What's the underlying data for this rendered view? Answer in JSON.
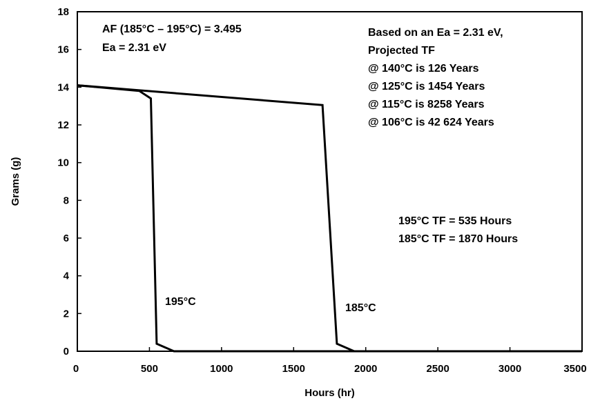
{
  "chart_data": {
    "type": "line",
    "xlabel": "Hours (hr)",
    "ylabel": "Grams (g)",
    "xlim": [
      0,
      3500
    ],
    "ylim": [
      0,
      18
    ],
    "xticks": [
      0,
      500,
      1000,
      1500,
      2000,
      2500,
      3000,
      3500
    ],
    "yticks": [
      0,
      2,
      4,
      6,
      8,
      10,
      12,
      14,
      16,
      18
    ],
    "grid": false,
    "series": [
      {
        "name": "195°C",
        "points": [
          [
            0,
            14.1
          ],
          [
            430,
            13.8
          ],
          [
            510,
            13.4
          ],
          [
            550,
            0.4
          ],
          [
            670,
            0
          ],
          [
            3500,
            0
          ]
        ]
      },
      {
        "name": "185°C",
        "points": [
          [
            0,
            14.1
          ],
          [
            1700,
            13.05
          ],
          [
            1800,
            0.4
          ],
          [
            1920,
            0
          ],
          [
            3500,
            0
          ]
        ]
      }
    ],
    "annotations": {
      "af_line1": "AF (185°C – 195°C) = 3.495",
      "af_line2": "Ea = 2.31 eV",
      "proj_line1": "Based on an Ea = 2.31 eV,",
      "proj_line2": "Projected TF",
      "proj_line3": "@ 140°C is 126 Years",
      "proj_line4": "@ 125°C is 1454 Years",
      "proj_line5": "@ 115°C is 8258 Years",
      "proj_line6": "@ 106°C is 42 624 Years",
      "tf_line1": "195°C TF = 535 Hours",
      "tf_line2": "185°C TF = 1870 Hours"
    }
  }
}
